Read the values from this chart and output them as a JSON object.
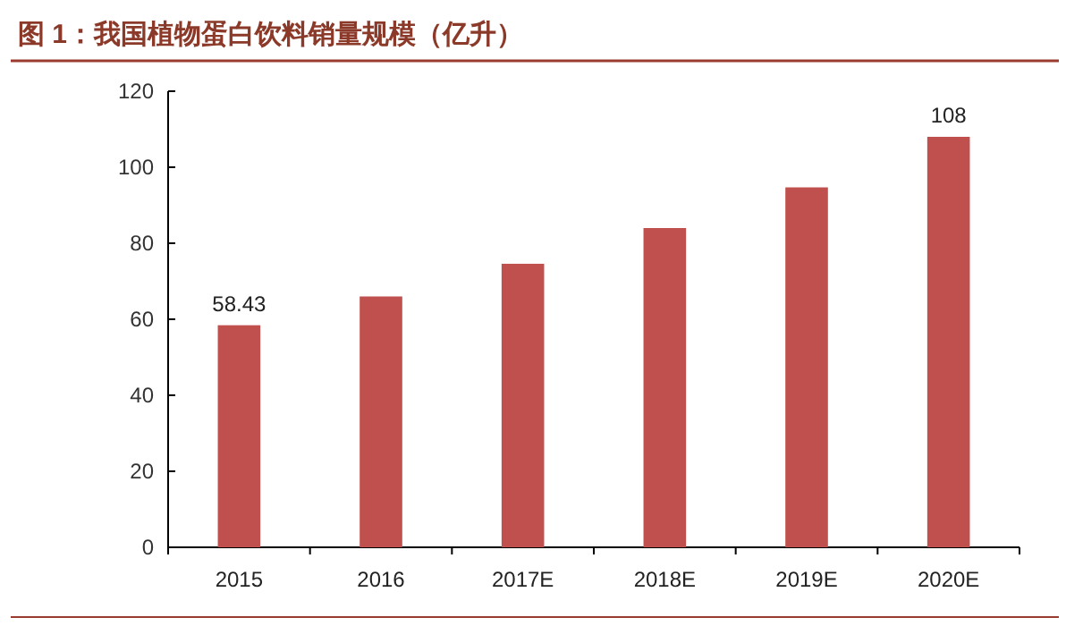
{
  "chart_data": {
    "type": "bar",
    "title": "图 1：我国植物蛋白饮料销量规模（亿升）",
    "categories": [
      "2015",
      "2016",
      "2017E",
      "2018E",
      "2019E",
      "2020E"
    ],
    "values": [
      58.43,
      66,
      74.6,
      84,
      94.7,
      108
    ],
    "value_labels": [
      "58.43",
      null,
      null,
      null,
      null,
      "108"
    ],
    "color": "#c0504d",
    "ylim": [
      0,
      120
    ],
    "yticks": [
      0,
      20,
      40,
      60,
      80,
      100,
      120
    ],
    "grid": false
  }
}
